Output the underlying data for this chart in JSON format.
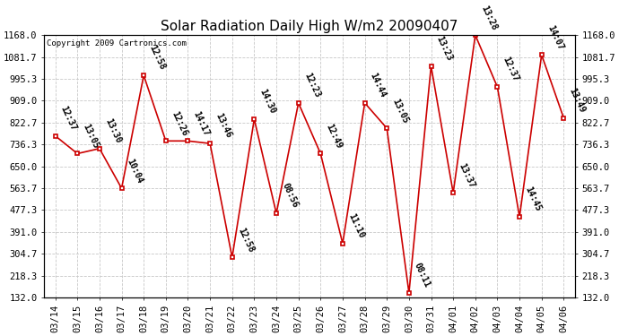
{
  "title": "Solar Radiation Daily High W/m2 20090407",
  "copyright": "Copyright 2009 Cartronics.com",
  "dates": [
    "03/14",
    "03/15",
    "03/16",
    "03/17",
    "03/18",
    "03/19",
    "03/20",
    "03/21",
    "03/22",
    "03/23",
    "03/24",
    "03/25",
    "03/26",
    "03/27",
    "03/28",
    "03/29",
    "03/30",
    "03/31",
    "04/01",
    "04/02",
    "04/03",
    "04/04",
    "04/05",
    "04/06"
  ],
  "values": [
    770,
    700,
    720,
    563,
    1009,
    750,
    750,
    740,
    290,
    836,
    464,
    900,
    700,
    345,
    900,
    800,
    150,
    1045,
    545,
    1168,
    963,
    450,
    1090,
    840
  ],
  "labels": [
    "12:37",
    "13:05",
    "13:30",
    "10:04",
    "12:58",
    "12:26",
    "14:17",
    "13:46",
    "12:58",
    "14:30",
    "08:56",
    "12:23",
    "12:49",
    "11:10",
    "14:44",
    "13:05",
    "08:11",
    "13:23",
    "13:37",
    "13:28",
    "12:37",
    "14:45",
    "14:07",
    "13:49"
  ],
  "y_ticks": [
    132.0,
    218.3,
    304.7,
    391.0,
    477.3,
    563.7,
    650.0,
    736.3,
    822.7,
    909.0,
    995.3,
    1081.7,
    1168.0
  ],
  "ymin": 132.0,
  "ymax": 1168.0,
  "line_color": "#CC0000",
  "marker_color": "#CC0000",
  "bg_color": "#FFFFFF",
  "grid_color": "#C8C8C8",
  "title_fontsize": 11,
  "annot_fontsize": 7,
  "tick_fontsize": 7.5,
  "fig_width": 6.9,
  "fig_height": 3.75,
  "dpi": 100
}
